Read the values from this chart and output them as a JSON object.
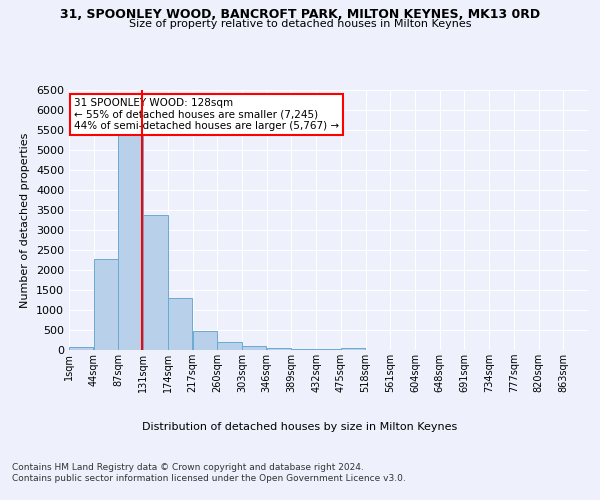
{
  "title": "31, SPOONLEY WOOD, BANCROFT PARK, MILTON KEYNES, MK13 0RD",
  "subtitle": "Size of property relative to detached houses in Milton Keynes",
  "xlabel": "Distribution of detached houses by size in Milton Keynes",
  "ylabel": "Number of detached properties",
  "footer_line1": "Contains HM Land Registry data © Crown copyright and database right 2024.",
  "footer_line2": "Contains public sector information licensed under the Open Government Licence v3.0.",
  "bin_labels": [
    "1sqm",
    "44sqm",
    "87sqm",
    "131sqm",
    "174sqm",
    "217sqm",
    "260sqm",
    "303sqm",
    "346sqm",
    "389sqm",
    "432sqm",
    "475sqm",
    "518sqm",
    "561sqm",
    "604sqm",
    "648sqm",
    "691sqm",
    "734sqm",
    "777sqm",
    "820sqm",
    "863sqm"
  ],
  "bar_values": [
    75,
    2280,
    5420,
    3380,
    1310,
    480,
    210,
    105,
    60,
    30,
    15,
    55,
    5,
    3,
    2,
    2,
    2,
    1,
    1,
    1,
    1
  ],
  "bar_color": "#b8d0ea",
  "bar_edge_color": "#6aaad4",
  "property_line_x": 128,
  "property_line_label": "31 SPOONLEY WOOD: 128sqm",
  "annotation_line1": "← 55% of detached houses are smaller (7,245)",
  "annotation_line2": "44% of semi-detached houses are larger (5,767) →",
  "annotation_box_color": "white",
  "annotation_box_edge_color": "red",
  "vline_color": "red",
  "ylim": [
    0,
    6500
  ],
  "yticks": [
    0,
    500,
    1000,
    1500,
    2000,
    2500,
    3000,
    3500,
    4000,
    4500,
    5000,
    5500,
    6000,
    6500
  ],
  "background_color": "#eef1fb",
  "grid_color": "white",
  "bin_width": 43
}
